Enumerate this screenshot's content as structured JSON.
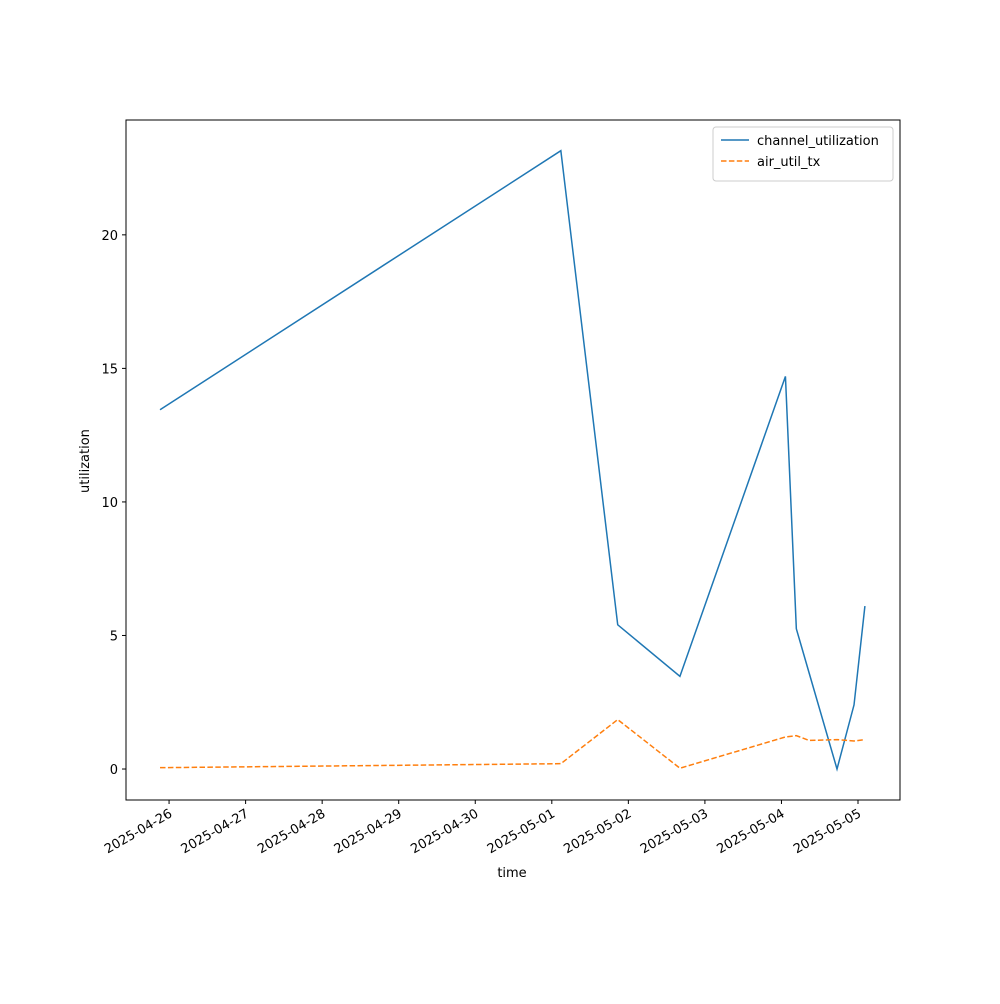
{
  "chart_data": {
    "type": "line",
    "xlabel": "time",
    "ylabel": "utilization",
    "x": [
      "2025-04-25T21:10",
      "2025-05-01T02:50",
      "2025-05-01T20:40",
      "2025-05-02T16:10",
      "2025-05-04T01:15",
      "2025-05-04T04:40",
      "2025-05-04T08:40",
      "2025-05-04T17:25",
      "2025-05-04T22:45",
      "2025-05-05T02:10"
    ],
    "series": [
      {
        "name": "channel_utilization",
        "color": "#1f77b4",
        "dash": "solid",
        "values": [
          13.45,
          23.15,
          5.4,
          3.47,
          14.7,
          5.25,
          3.6,
          0.0,
          2.4,
          6.1
        ]
      },
      {
        "name": "air_util_tx",
        "color": "#ff7f0e",
        "dash": "dashed",
        "values": [
          0.05,
          0.2,
          1.85,
          0.03,
          1.2,
          1.25,
          1.07,
          1.1,
          1.05,
          1.1
        ]
      }
    ],
    "xlim": [
      "2025-04-25T10:30",
      "2025-05-05T13:10"
    ],
    "xticks": [
      "2025-04-26",
      "2025-04-27",
      "2025-04-28",
      "2025-04-29",
      "2025-04-30",
      "2025-05-01",
      "2025-05-02",
      "2025-05-03",
      "2025-05-04",
      "2025-05-05"
    ],
    "ylim": [
      -1.16,
      24.3
    ],
    "yticks": [
      0,
      5,
      10,
      15,
      20
    ],
    "legend": "upper right"
  }
}
